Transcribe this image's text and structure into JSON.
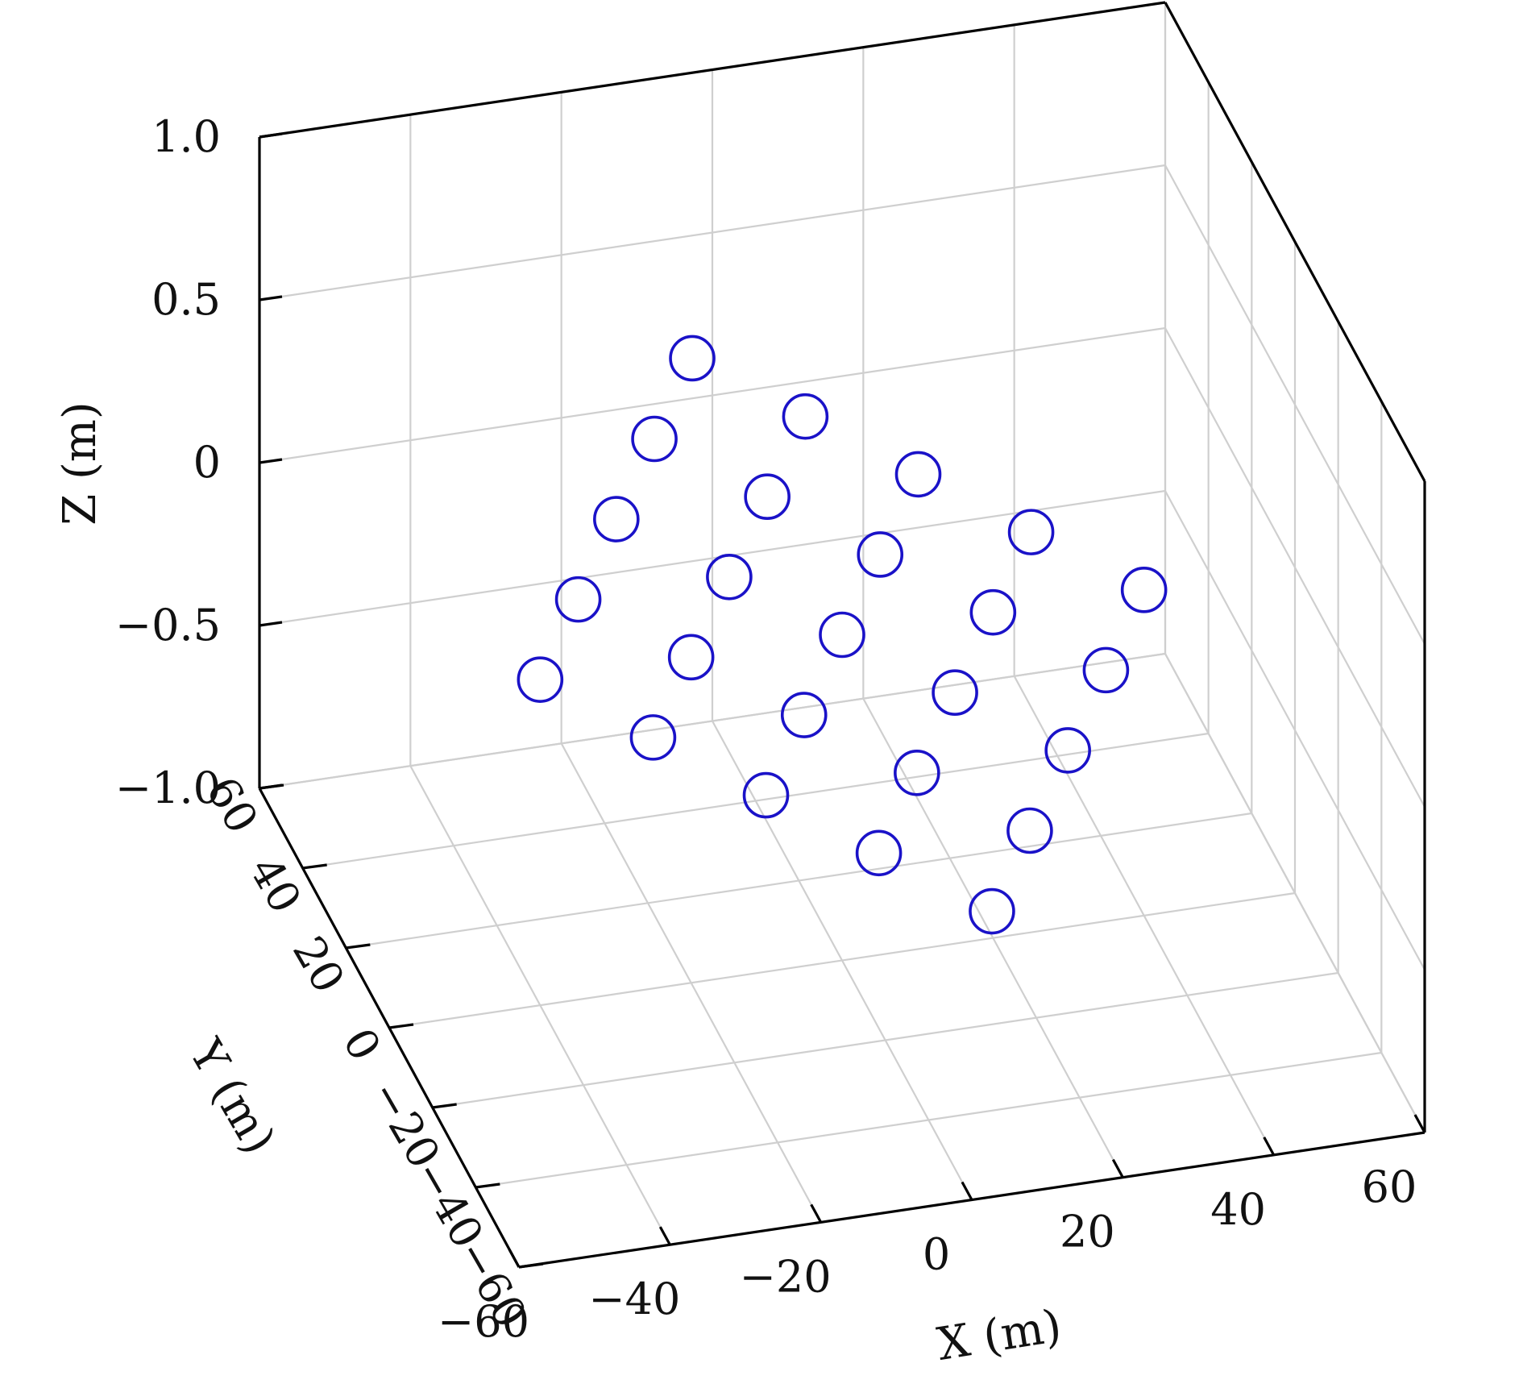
{
  "chart_data": {
    "type": "scatter",
    "title": "",
    "xlabel": "X (m)",
    "ylabel": "Y (m)",
    "zlabel": "Z (m)",
    "xlim": [
      -60,
      60
    ],
    "ylim": [
      -60,
      60
    ],
    "zlim": [
      -1.0,
      1.0
    ],
    "x_ticks": [
      "−60",
      "−40",
      "−20",
      "0",
      "20",
      "40",
      "60"
    ],
    "y_ticks": [
      "−60",
      "−40",
      "−20",
      "0",
      "20",
      "40",
      "60"
    ],
    "z_ticks": [
      "−1.0",
      "−0.5",
      "0",
      "0.5",
      "1.0"
    ],
    "grid": true,
    "marker": "open-circle",
    "marker_color": "#1a12c8",
    "points": [
      {
        "x": -40,
        "y": 0,
        "z": 0
      },
      {
        "x": -30,
        "y": 17.3,
        "z": 0
      },
      {
        "x": -30,
        "y": -17.3,
        "z": 0
      },
      {
        "x": -20,
        "y": 34.6,
        "z": 0
      },
      {
        "x": -20,
        "y": 0,
        "z": 0
      },
      {
        "x": -20,
        "y": -34.6,
        "z": 0
      },
      {
        "x": -10,
        "y": 51.9,
        "z": 0
      },
      {
        "x": -10,
        "y": 17.3,
        "z": 0
      },
      {
        "x": -10,
        "y": -17.3,
        "z": 0
      },
      {
        "x": -10,
        "y": -51.9,
        "z": 0
      },
      {
        "x": 0,
        "y": 69.3,
        "z": 0
      },
      {
        "x": 0,
        "y": 34.6,
        "z": 0
      },
      {
        "x": 0,
        "y": 0,
        "z": 0
      },
      {
        "x": 0,
        "y": -34.6,
        "z": 0
      },
      {
        "x": 0,
        "y": -69.3,
        "z": 0
      },
      {
        "x": 10,
        "y": 51.9,
        "z": 0
      },
      {
        "x": 10,
        "y": 17.3,
        "z": 0
      },
      {
        "x": 10,
        "y": -17.3,
        "z": 0
      },
      {
        "x": 10,
        "y": -51.9,
        "z": 0
      },
      {
        "x": 20,
        "y": 34.6,
        "z": 0
      },
      {
        "x": 20,
        "y": 0,
        "z": 0
      },
      {
        "x": 20,
        "y": -34.6,
        "z": 0
      },
      {
        "x": 30,
        "y": 17.3,
        "z": 0
      },
      {
        "x": 30,
        "y": -17.3,
        "z": 0
      },
      {
        "x": 40,
        "y": 0,
        "z": 0
      }
    ]
  }
}
